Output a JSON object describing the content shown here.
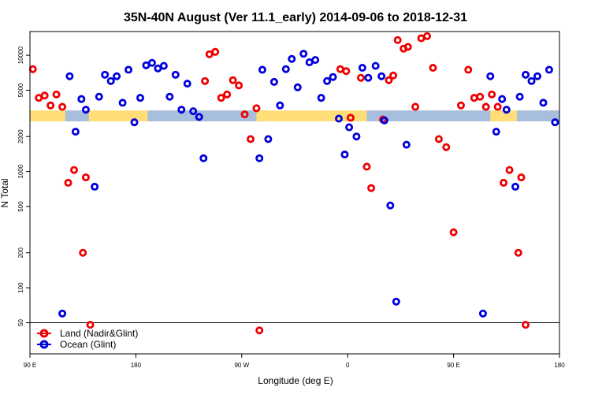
{
  "chart_data": {
    "type": "scatter",
    "title": "35N-40N August (Ver 11.1_early)   2014-09-06 to 2018-12-31",
    "xlabel": "Longitude (deg E)",
    "ylabel": "N Total",
    "y_scale": "log",
    "xlim": [
      0,
      360
    ],
    "ylim": [
      27,
      16000
    ],
    "x_ticks": [
      {
        "x": 0,
        "label": "90 E"
      },
      {
        "x": 72,
        "label": "180"
      },
      {
        "x": 144,
        "label": "90 W"
      },
      {
        "x": 216,
        "label": "0"
      },
      {
        "x": 288,
        "label": "90 E"
      },
      {
        "x": 360,
        "label": "180"
      }
    ],
    "y_ticks": [
      {
        "y": 50,
        "label": "50"
      },
      {
        "y": 100,
        "label": "100"
      },
      {
        "y": 200,
        "label": "200"
      },
      {
        "y": 500,
        "label": "500"
      },
      {
        "y": 1000,
        "label": "1000"
      },
      {
        "y": 2000,
        "label": "2000"
      },
      {
        "y": 5000,
        "label": "5000"
      },
      {
        "y": 10000,
        "label": "10000"
      }
    ],
    "reference_line_y": 50,
    "band": {
      "y_low": 2700,
      "y_high": 3350,
      "land_color": "#ffdd77",
      "ocean_color": "#a8bedd"
    },
    "band_ocean_ranges": [
      [
        24,
        40
      ],
      [
        80,
        154
      ],
      [
        229,
        313
      ],
      [
        331,
        360
      ]
    ],
    "legend": {
      "position": "bottom-left"
    },
    "series": [
      {
        "name": "Land (Nadir&Glint)",
        "color": "#ee0000",
        "points": [
          [
            2,
            7600
          ],
          [
            6,
            4300
          ],
          [
            10,
            4500
          ],
          [
            14,
            3700
          ],
          [
            18,
            4600
          ],
          [
            22,
            3600
          ],
          [
            26,
            800
          ],
          [
            30,
            1030
          ],
          [
            36,
            200
          ],
          [
            38,
            890
          ],
          [
            41,
            48
          ],
          [
            119,
            6000
          ],
          [
            122,
            10200
          ],
          [
            126,
            10700
          ],
          [
            130,
            4300
          ],
          [
            134,
            4600
          ],
          [
            138,
            6100
          ],
          [
            142,
            5500
          ],
          [
            146,
            3100
          ],
          [
            150,
            1900
          ],
          [
            154,
            3500
          ],
          [
            156,
            43
          ],
          [
            211,
            7600
          ],
          [
            215,
            7300
          ],
          [
            218,
            2900
          ],
          [
            225,
            6400
          ],
          [
            229,
            1100
          ],
          [
            232,
            720
          ],
          [
            240,
            2800
          ],
          [
            244,
            6100
          ],
          [
            247,
            6700
          ],
          [
            250,
            13500
          ],
          [
            254,
            11400
          ],
          [
            257,
            11800
          ],
          [
            262,
            3600
          ],
          [
            266,
            14000
          ],
          [
            270,
            14600
          ],
          [
            274,
            7800
          ],
          [
            278,
            1900
          ],
          [
            283,
            1620
          ],
          [
            288,
            300
          ],
          [
            293,
            3700
          ],
          [
            298,
            7500
          ],
          [
            302,
            4300
          ],
          [
            306,
            4400
          ],
          [
            310,
            3600
          ],
          [
            314,
            4600
          ],
          [
            318,
            3600
          ],
          [
            322,
            800
          ],
          [
            326,
            1030
          ],
          [
            332,
            200
          ],
          [
            334,
            890
          ],
          [
            337,
            48
          ]
        ]
      },
      {
        "name": "Ocean (Glint)",
        "color": "#0000dd",
        "points": [
          [
            22,
            60
          ],
          [
            27,
            6600
          ],
          [
            31,
            2200
          ],
          [
            35,
            4200
          ],
          [
            38,
            3400
          ],
          [
            44,
            740
          ],
          [
            47,
            4400
          ],
          [
            51,
            6800
          ],
          [
            55,
            6000
          ],
          [
            59,
            6600
          ],
          [
            63,
            3900
          ],
          [
            67,
            7500
          ],
          [
            71,
            2650
          ],
          [
            75,
            4300
          ],
          [
            79,
            8200
          ],
          [
            83,
            8600
          ],
          [
            87,
            7700
          ],
          [
            91,
            8100
          ],
          [
            95,
            4400
          ],
          [
            99,
            6800
          ],
          [
            103,
            3400
          ],
          [
            107,
            5700
          ],
          [
            111,
            3300
          ],
          [
            115,
            2950
          ],
          [
            118,
            1300
          ],
          [
            156,
            1300
          ],
          [
            158,
            7500
          ],
          [
            162,
            1900
          ],
          [
            166,
            5900
          ],
          [
            170,
            3700
          ],
          [
            174,
            7600
          ],
          [
            178,
            9300
          ],
          [
            182,
            5300
          ],
          [
            186,
            10300
          ],
          [
            190,
            8700
          ],
          [
            194,
            9100
          ],
          [
            198,
            4300
          ],
          [
            202,
            6000
          ],
          [
            206,
            6500
          ],
          [
            210,
            2850
          ],
          [
            214,
            1400
          ],
          [
            217,
            2400
          ],
          [
            222,
            2000
          ],
          [
            226,
            7800
          ],
          [
            230,
            6400
          ],
          [
            235,
            8100
          ],
          [
            239,
            6600
          ],
          [
            241,
            2750
          ],
          [
            245,
            510
          ],
          [
            249,
            76
          ],
          [
            256,
            1700
          ],
          [
            308,
            60
          ],
          [
            313,
            6600
          ],
          [
            317,
            2200
          ],
          [
            321,
            4200
          ],
          [
            324,
            3400
          ],
          [
            330,
            740
          ],
          [
            333,
            4400
          ],
          [
            337,
            6800
          ],
          [
            341,
            6000
          ],
          [
            345,
            6600
          ],
          [
            349,
            3900
          ],
          [
            353,
            7500
          ],
          [
            357,
            2650
          ]
        ]
      }
    ]
  }
}
